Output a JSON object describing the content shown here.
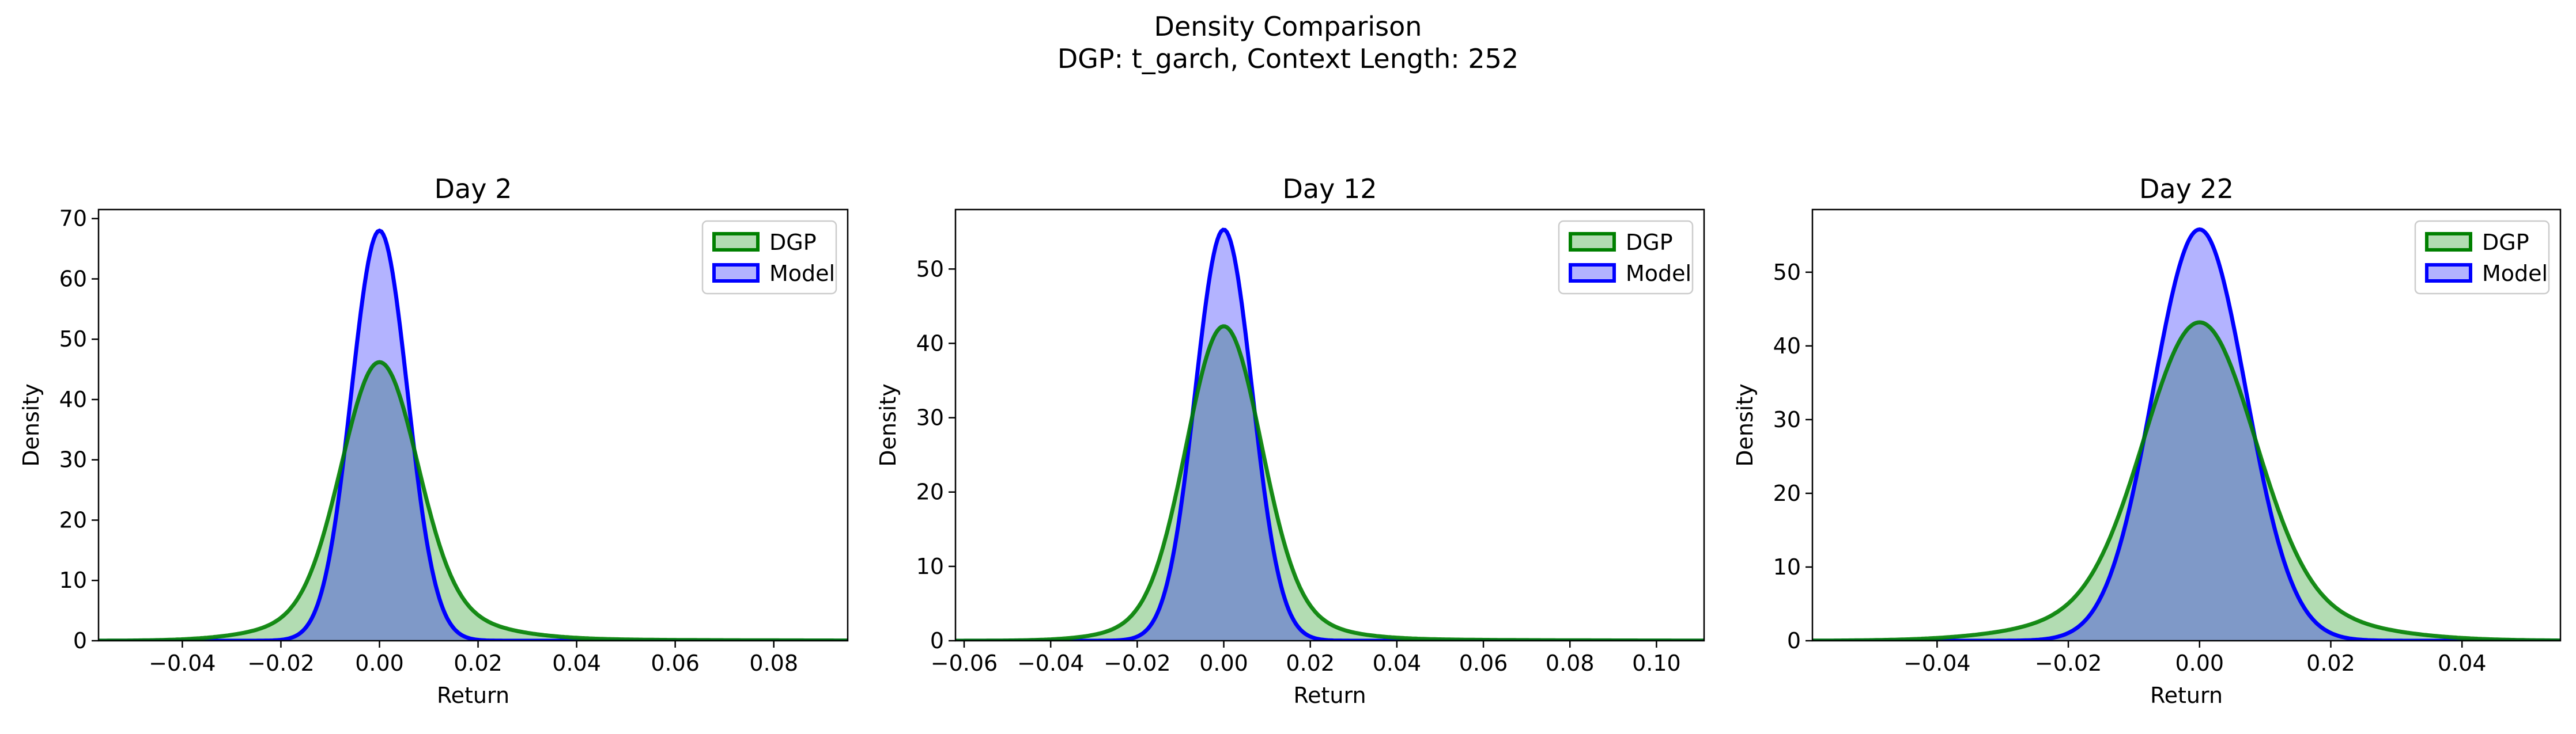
{
  "figure": {
    "title_line1": "Density Comparison",
    "title_line2": "DGP: t_garch, Context Length: 252"
  },
  "colors": {
    "dgp_line": "#008000",
    "dgp_fill": "#b2dcb2",
    "model_line": "#0000ff",
    "model_fill": "#b3b3ff",
    "overlap_fill": "#7f99c8"
  },
  "chart_data": [
    {
      "type": "area",
      "title": "Day 2",
      "xlabel": "Return",
      "ylabel": "Density",
      "xlim": [
        -0.057,
        0.095
      ],
      "ylim": [
        0,
        71.5
      ],
      "xticks": [
        -0.04,
        -0.02,
        0.0,
        0.02,
        0.04,
        0.06,
        0.08
      ],
      "xtick_labels": [
        "−0.04",
        "−0.02",
        "0.00",
        "0.02",
        "0.04",
        "0.06",
        "0.08"
      ],
      "yticks": [
        0,
        10,
        20,
        30,
        40,
        50,
        60,
        70
      ],
      "ytick_labels": [
        "0",
        "10",
        "20",
        "30",
        "40",
        "50",
        "60",
        "70"
      ],
      "legend": "top-right",
      "series": [
        {
          "name": "DGP",
          "peak": 46.2,
          "core_sd": 0.0076,
          "tail_weight": 0.12,
          "tail_scale": 0.016,
          "right_tail_weight": 0.02,
          "right_tail_scale": 0.03,
          "x_from": -0.057,
          "x_to": 0.095
        },
        {
          "name": "Model",
          "peak": 68.0,
          "sd": 0.0057,
          "x_from": -0.057,
          "x_to": 0.095
        }
      ]
    },
    {
      "type": "area",
      "title": "Day 12",
      "xlabel": "Return",
      "ylabel": "Density",
      "xlim": [
        -0.062,
        0.111
      ],
      "ylim": [
        0,
        58
      ],
      "xticks": [
        -0.06,
        -0.04,
        -0.02,
        0.0,
        0.02,
        0.04,
        0.06,
        0.08,
        0.1
      ],
      "xtick_labels": [
        "−0.06",
        "−0.04",
        "−0.02",
        "0.00",
        "0.02",
        "0.04",
        "0.06",
        "0.08",
        "0.10"
      ],
      "yticks": [
        0,
        10,
        20,
        30,
        40,
        50
      ],
      "ytick_labels": [
        "0",
        "10",
        "20",
        "30",
        "40",
        "50"
      ],
      "legend": "top-right",
      "series": [
        {
          "name": "DGP",
          "peak": 42.3,
          "core_sd": 0.0085,
          "tail_weight": 0.1,
          "tail_scale": 0.016,
          "right_tail_weight": 0.02,
          "right_tail_scale": 0.03,
          "x_from": -0.062,
          "x_to": 0.111
        },
        {
          "name": "Model",
          "peak": 55.3,
          "sd": 0.0066,
          "x_from": -0.062,
          "x_to": 0.111
        }
      ]
    },
    {
      "type": "area",
      "title": "Day 22",
      "xlabel": "Return",
      "ylabel": "Density",
      "xlim": [
        -0.059,
        0.055
      ],
      "ylim": [
        0,
        58.5
      ],
      "xticks": [
        -0.04,
        -0.02,
        0.0,
        0.02,
        0.04
      ],
      "xtick_labels": [
        "−0.04",
        "−0.02",
        "0.00",
        "0.02",
        "0.04"
      ],
      "yticks": [
        0,
        10,
        20,
        30,
        40,
        50
      ],
      "ytick_labels": [
        "0",
        "10",
        "20",
        "30",
        "40",
        "50"
      ],
      "legend": "top-right",
      "series": [
        {
          "name": "DGP",
          "peak": 43.2,
          "core_sd": 0.0083,
          "tail_weight": 0.14,
          "tail_scale": 0.017,
          "right_tail_weight": 0.0,
          "right_tail_scale": 0.02,
          "x_from": -0.059,
          "x_to": 0.055
        },
        {
          "name": "Model",
          "peak": 55.8,
          "sd": 0.0071,
          "x_from": -0.059,
          "x_to": 0.055
        }
      ]
    }
  ]
}
